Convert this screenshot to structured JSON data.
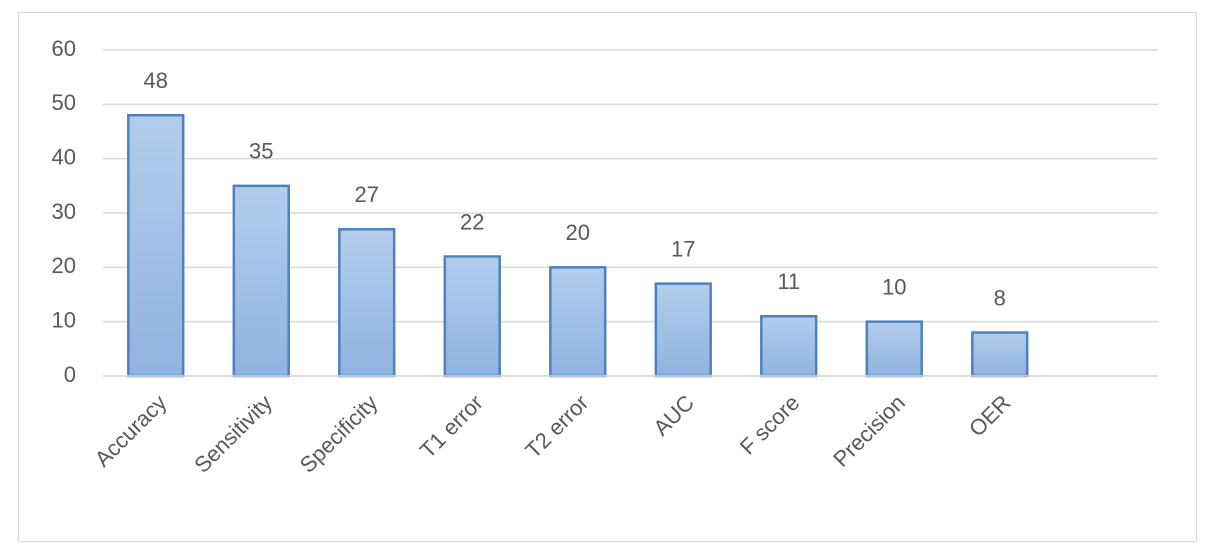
{
  "chart_data": {
    "type": "bar",
    "categories": [
      "Accuracy",
      "Sensitivity",
      "Specificity",
      "T1 error",
      "T2 error",
      "AUC",
      "F score",
      "Precision",
      "OER"
    ],
    "values": [
      48,
      35,
      27,
      22,
      20,
      17,
      11,
      10,
      8
    ],
    "color": "#9dc3e6",
    "edge_color": "#4f81bd",
    "ylim": [
      0,
      60
    ],
    "yticks": [
      0,
      10,
      20,
      30,
      40,
      50,
      60
    ],
    "grid": true
  }
}
